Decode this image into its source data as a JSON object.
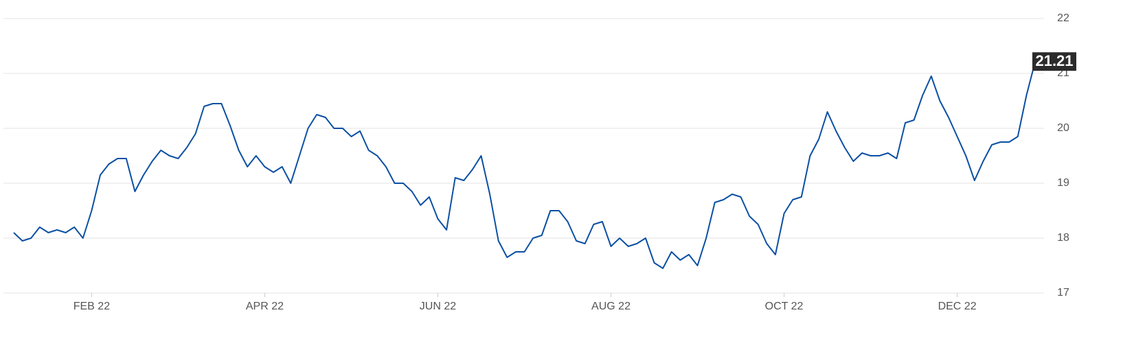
{
  "chart_data": {
    "type": "line",
    "categories": [
      null,
      null,
      null,
      null,
      null,
      null,
      null,
      null,
      null,
      "FEB 22",
      null,
      null,
      null,
      null,
      null,
      null,
      null,
      null,
      null,
      null,
      null,
      null,
      null,
      null,
      null,
      null,
      null,
      null,
      null,
      "APR 22",
      null,
      null,
      null,
      null,
      null,
      null,
      null,
      null,
      null,
      null,
      null,
      null,
      null,
      null,
      null,
      null,
      null,
      null,
      null,
      "JUN 22",
      null,
      null,
      null,
      null,
      null,
      null,
      null,
      null,
      null,
      null,
      null,
      null,
      null,
      null,
      null,
      null,
      null,
      null,
      null,
      "AUG 22",
      null,
      null,
      null,
      null,
      null,
      null,
      null,
      null,
      null,
      null,
      null,
      null,
      null,
      null,
      null,
      null,
      null,
      null,
      null,
      "OCT 22",
      null,
      null,
      null,
      null,
      null,
      null,
      null,
      null,
      null,
      null,
      null,
      null,
      null,
      null,
      null,
      null,
      null,
      null,
      null,
      "DEC 22",
      null,
      null,
      null,
      null,
      null,
      null,
      null,
      null,
      null
    ],
    "values": [
      18.1,
      17.95,
      18.0,
      18.2,
      18.1,
      18.15,
      18.1,
      18.2,
      18.0,
      18.5,
      19.15,
      19.35,
      19.45,
      19.45,
      18.85,
      19.15,
      19.4,
      19.6,
      19.5,
      19.45,
      19.65,
      19.9,
      20.4,
      20.45,
      20.45,
      20.05,
      19.6,
      19.3,
      19.5,
      19.3,
      19.2,
      19.3,
      19.0,
      19.5,
      20.0,
      20.25,
      20.2,
      20.0,
      20.0,
      19.85,
      19.95,
      19.6,
      19.5,
      19.3,
      19.0,
      19.0,
      18.85,
      18.6,
      18.75,
      18.35,
      18.15,
      19.1,
      19.05,
      19.25,
      19.5,
      18.8,
      17.95,
      17.65,
      17.75,
      17.75,
      18.0,
      18.05,
      18.5,
      18.5,
      18.3,
      17.95,
      17.9,
      18.25,
      18.3,
      17.85,
      18.0,
      17.85,
      17.9,
      18.0,
      17.55,
      17.45,
      17.75,
      17.6,
      17.7,
      17.5,
      18.0,
      18.65,
      18.7,
      18.8,
      18.75,
      18.4,
      18.25,
      17.9,
      17.7,
      18.45,
      18.7,
      18.75,
      19.5,
      19.8,
      20.3,
      19.95,
      19.65,
      19.4,
      19.55,
      19.5,
      19.5,
      19.55,
      19.45,
      20.1,
      20.15,
      20.6,
      20.95,
      20.5,
      20.2,
      19.85,
      19.5,
      19.05,
      19.4,
      19.7,
      19.75,
      19.75,
      19.85,
      20.6,
      21.21
    ],
    "color": "#0b4fa3",
    "ylim": [
      17,
      22
    ],
    "yticks": [
      17,
      18,
      19,
      20,
      21,
      22
    ],
    "grid": true
  }
}
